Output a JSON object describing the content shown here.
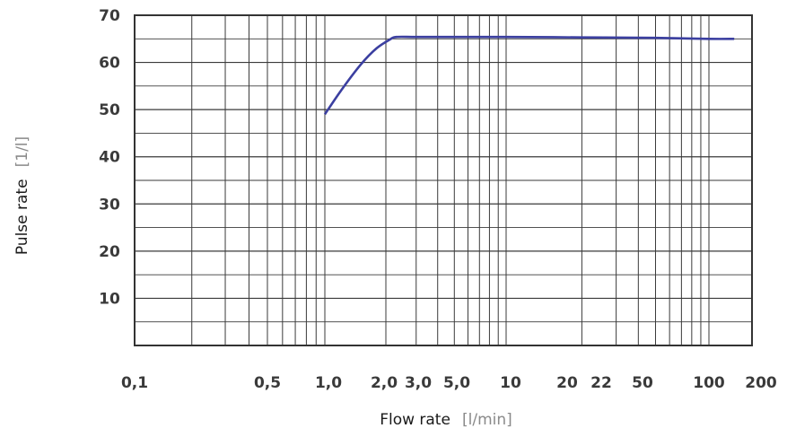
{
  "chart_data": {
    "type": "line",
    "title": "",
    "xlabel": "Flow rate",
    "xunit": "[l/min]",
    "ylabel": "Pulse rate",
    "yunit": "[1/l]",
    "xscale": "log",
    "grid": true,
    "colors": {
      "line": "#3b3fa0",
      "grid": "#3a3a3a",
      "frame": "#333333"
    },
    "xtick_labels": [
      "0,1",
      "0,5",
      "1,0",
      "2,0",
      "3,0",
      "5,0",
      "10",
      "20",
      "22",
      "50",
      "100",
      "200"
    ],
    "ytick_labels": [
      "70",
      "60",
      "50",
      "40",
      "30",
      "20",
      "10"
    ],
    "ylim": [
      0,
      70
    ],
    "series": [
      {
        "x": [
          1.0,
          1.2,
          1.5,
          1.8,
          2.1,
          2.3,
          3.0,
          5.0,
          10,
          20,
          50,
          100,
          140
        ],
        "y": [
          49,
          54,
          59.5,
          63,
          64.8,
          65.4,
          65.4,
          65.4,
          65.4,
          65.3,
          65.2,
          65.0,
          65.0
        ]
      }
    ]
  }
}
